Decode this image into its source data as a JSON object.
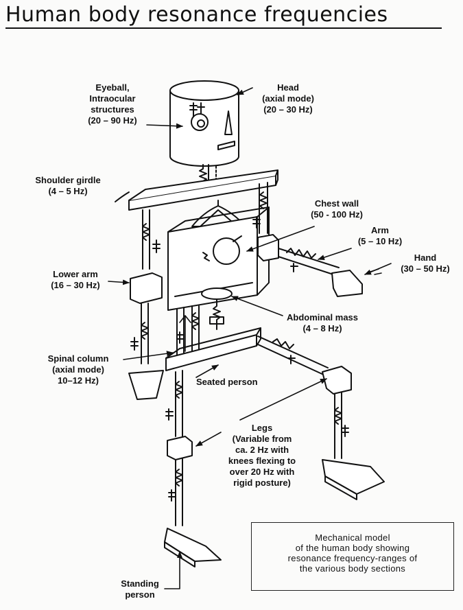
{
  "title": "Human body resonance frequencies",
  "labels": {
    "eyeball": [
      "Eyeball,",
      "Intraocular",
      "structures",
      "(20 – 90 Hz)"
    ],
    "head": [
      "Head",
      "(axial mode)",
      "(20 – 30 Hz)"
    ],
    "shoulder": [
      "Shoulder girdle",
      "(4 – 5 Hz)"
    ],
    "chest": [
      "Chest wall",
      "(50 - 100 Hz)"
    ],
    "arm": [
      "Arm",
      "(5 – 10 Hz)"
    ],
    "hand": [
      "Hand",
      "(30 – 50 Hz)"
    ],
    "lower_arm": [
      "Lower arm",
      "(16 – 30 Hz)"
    ],
    "abdominal": [
      "Abdominal mass",
      "(4 – 8 Hz)"
    ],
    "spinal": [
      "Spinal column",
      "(axial mode)",
      "10–12 Hz)"
    ],
    "seated": [
      "Seated person"
    ],
    "legs": [
      "Legs",
      "(Variable from",
      "ca. 2 Hz with",
      "knees flexing to",
      "over 20 Hz with",
      "rigid posture)"
    ],
    "standing": [
      "Standing",
      "person"
    ]
  },
  "caption": [
    "Mechanical model",
    "of the human body showing",
    "resonance frequency-ranges of",
    "the various body sections"
  ]
}
